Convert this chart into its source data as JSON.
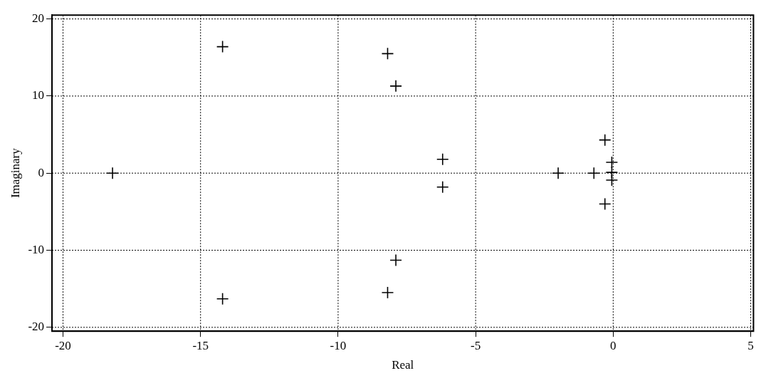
{
  "chart_data": {
    "type": "scatter",
    "xlabel": "Real",
    "ylabel": "Imaginary",
    "marker": "cross",
    "grid": true,
    "legend": false,
    "xlim": [
      -20.4,
      5.1
    ],
    "ylim": [
      -20.5,
      20.5
    ],
    "xticks": [
      -20,
      -15,
      -10,
      -5,
      0,
      5
    ],
    "yticks": [
      -20,
      -10,
      0,
      10,
      20
    ],
    "series": [
      {
        "color": "#000000",
        "x": [
          -18.2,
          -14.2,
          -14.2,
          -8.2,
          -7.9,
          -7.9,
          -8.2,
          -6.2,
          -6.2,
          -2.0,
          -0.7,
          -0.3,
          -0.3,
          -0.05,
          -0.05,
          -0.05
        ],
        "values": [
          0,
          16.4,
          -16.3,
          15.5,
          11.3,
          -11.3,
          -15.5,
          1.8,
          -1.8,
          0,
          0,
          4.3,
          -4.0,
          1.4,
          0.1,
          -0.9
        ]
      }
    ]
  }
}
